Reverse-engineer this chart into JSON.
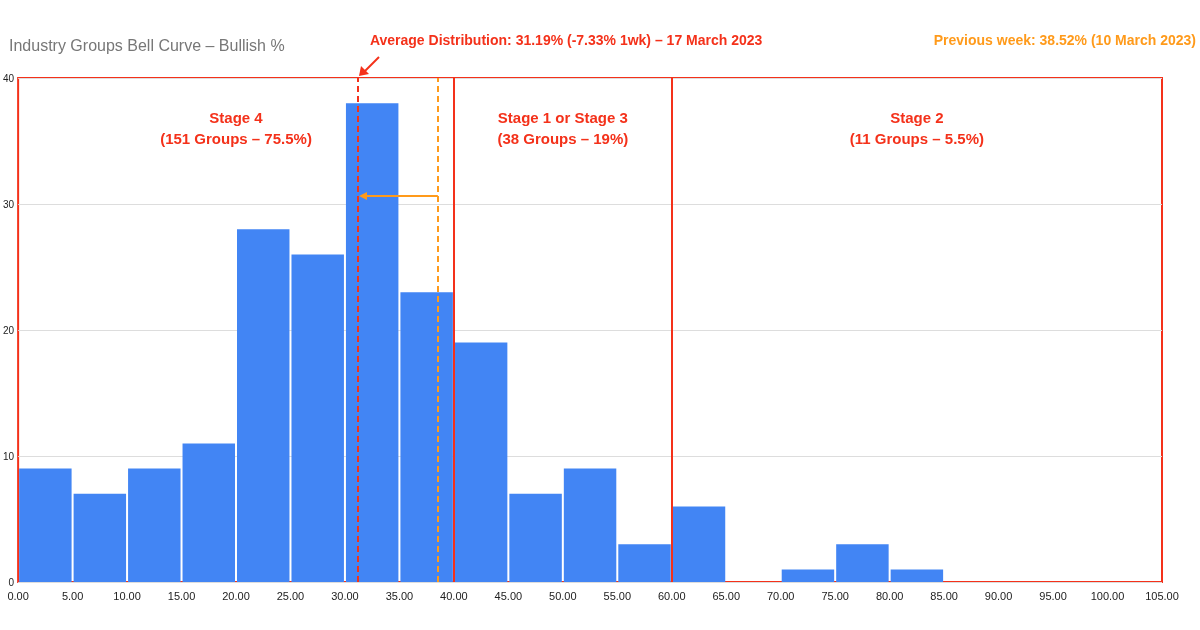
{
  "chart_data": {
    "type": "histogram",
    "title": "Industry Groups Bell Curve – Bullish %",
    "bins": [
      0,
      5,
      10,
      15,
      20,
      25,
      30,
      35,
      40,
      45,
      50,
      55,
      60,
      65,
      70,
      75,
      80,
      85,
      90,
      95,
      100
    ],
    "values": [
      9,
      7,
      9,
      11,
      28,
      26,
      38,
      23,
      19,
      7,
      9,
      3,
      6,
      0,
      1,
      3,
      1,
      0,
      0,
      0
    ],
    "color": "#4285f4",
    "xlim": [
      0,
      105
    ],
    "xticks": [
      {
        "value": 0,
        "label": "0.00"
      },
      {
        "value": 5,
        "label": "5.00"
      },
      {
        "value": 10,
        "label": "10.00"
      },
      {
        "value": 15,
        "label": "15.00"
      },
      {
        "value": 20,
        "label": "20.00"
      },
      {
        "value": 25,
        "label": "25.00"
      },
      {
        "value": 30,
        "label": "30.00"
      },
      {
        "value": 35,
        "label": "35.00"
      },
      {
        "value": 40,
        "label": "40.00"
      },
      {
        "value": 45,
        "label": "45.00"
      },
      {
        "value": 50,
        "label": "50.00"
      },
      {
        "value": 55,
        "label": "55.00"
      },
      {
        "value": 60,
        "label": "60.00"
      },
      {
        "value": 65,
        "label": "65.00"
      },
      {
        "value": 70,
        "label": "70.00"
      },
      {
        "value": 75,
        "label": "75.00"
      },
      {
        "value": 80,
        "label": "80.00"
      },
      {
        "value": 85,
        "label": "85.00"
      },
      {
        "value": 90,
        "label": "90.00"
      },
      {
        "value": 95,
        "label": "95.00"
      },
      {
        "value": 100,
        "label": "100.00"
      },
      {
        "value": 105,
        "label": "105.00"
      }
    ],
    "ylim": [
      0,
      40
    ],
    "yticks": [
      0,
      10,
      20,
      30,
      40
    ],
    "grid": "y",
    "ref_lines": [
      {
        "axis": "x",
        "value": 31.19,
        "label": "Average Distribution: 31.19% (-7.33% 1wk) – 17 March 2023",
        "color": "#f4311a",
        "line_style": "dashed"
      },
      {
        "axis": "x",
        "value": 38.52,
        "label": "Previous week: 38.52% (10 March 2023)",
        "color": "#ff9a1a",
        "line_style": "dashed"
      },
      {
        "axis": "x",
        "value": 40,
        "label": null,
        "color": "#f4311a",
        "line_style": "solid"
      },
      {
        "axis": "x",
        "value": 60,
        "label": null,
        "color": "#f4311a",
        "line_style": "solid"
      }
    ],
    "annotations": [
      "Stage 4\n(151 Groups – 75.5%)",
      "Stage 1 or Stage 3\n(38 Groups – 19%)",
      "Stage 2\n(11 Groups – 5.5%)"
    ]
  }
}
